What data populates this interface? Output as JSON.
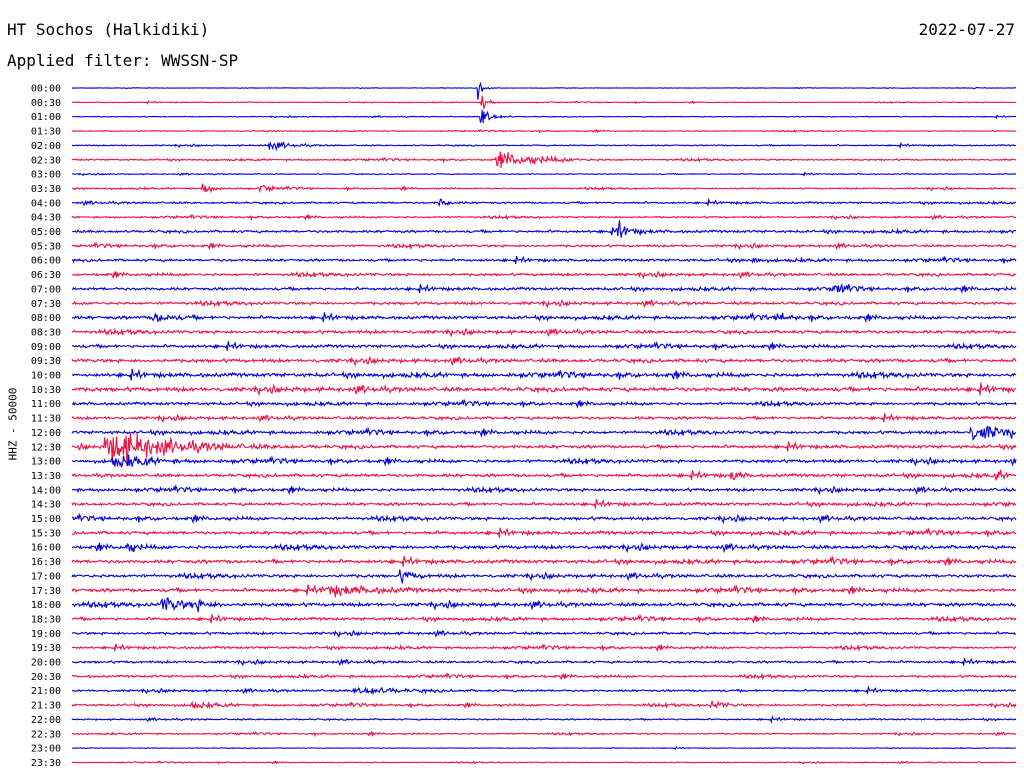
{
  "header": {
    "title": "HT Sochos (Halkidiki)",
    "date": "2022-07-27",
    "filter": "Applied filter: WWSSN-SP"
  },
  "chart_data": {
    "type": "line",
    "ylabel": "HHZ - 50000",
    "row_labels": [
      "00:00",
      "00:30",
      "01:00",
      "01:30",
      "02:00",
      "02:30",
      "03:00",
      "03:30",
      "04:00",
      "04:30",
      "05:00",
      "05:30",
      "06:00",
      "06:30",
      "07:00",
      "07:30",
      "08:00",
      "08:30",
      "09:00",
      "09:30",
      "10:00",
      "10:30",
      "11:00",
      "11:30",
      "12:00",
      "12:30",
      "13:00",
      "13:30",
      "14:00",
      "14:30",
      "15:00",
      "15:30",
      "16:00",
      "16:30",
      "17:00",
      "17:30",
      "18:00",
      "18:30",
      "19:00",
      "19:30",
      "20:00",
      "20:30",
      "21:00",
      "21:30",
      "22:00",
      "22:30",
      "23:00",
      "23:30"
    ],
    "colors": [
      "#0000dd",
      "#ee1144"
    ],
    "noise_levels": [
      0.3,
      0.5,
      0.5,
      0.6,
      0.8,
      1.0,
      0.6,
      0.9,
      1.2,
      1.1,
      1.6,
      1.5,
      1.6,
      1.7,
      1.8,
      1.8,
      2.0,
      2.0,
      1.9,
      2.2,
      2.4,
      2.6,
      1.8,
      1.8,
      2.0,
      2.0,
      2.0,
      2.0,
      1.9,
      1.9,
      2.0,
      2.0,
      2.2,
      2.2,
      2.0,
      2.2,
      2.2,
      1.8,
      1.6,
      1.5,
      1.5,
      1.4,
      1.3,
      1.3,
      1.0,
      0.9,
      0.4,
      0.6
    ],
    "events": [
      {
        "row": 0,
        "t": 0.43,
        "amp": 35,
        "dur": 0.003
      },
      {
        "row": 1,
        "t": 0.435,
        "amp": 14,
        "dur": 0.006
      },
      {
        "row": 2,
        "t": 0.435,
        "amp": 16,
        "dur": 0.01
      },
      {
        "row": 4,
        "t": 0.21,
        "amp": 6,
        "dur": 0.02
      },
      {
        "row": 5,
        "t": 0.46,
        "amp": 11,
        "dur": 0.04
      },
      {
        "row": 7,
        "t": 0.14,
        "amp": 8,
        "dur": 0.01
      },
      {
        "row": 7,
        "t": 0.2,
        "amp": 7,
        "dur": 0.01
      },
      {
        "row": 8,
        "t": 0.39,
        "amp": 8,
        "dur": 0.008
      },
      {
        "row": 10,
        "t": 0.58,
        "amp": 10,
        "dur": 0.015
      },
      {
        "row": 12,
        "t": 0.72,
        "amp": 7,
        "dur": 0.006
      },
      {
        "row": 14,
        "t": 0.81,
        "amp": 8,
        "dur": 0.01
      },
      {
        "row": 16,
        "t": 0.09,
        "amp": 6,
        "dur": 0.02
      },
      {
        "row": 16,
        "t": 0.75,
        "amp": 7,
        "dur": 0.01
      },
      {
        "row": 24,
        "t": 0.96,
        "amp": 12,
        "dur": 0.03
      },
      {
        "row": 25,
        "t": 0.05,
        "amp": 22,
        "dur": 0.06
      },
      {
        "row": 26,
        "t": 0.05,
        "amp": 10,
        "dur": 0.03
      },
      {
        "row": 27,
        "t": 0.7,
        "amp": 8,
        "dur": 0.008
      },
      {
        "row": 27,
        "t": 0.98,
        "amp": 8,
        "dur": 0.006
      },
      {
        "row": 32,
        "t": 0.06,
        "amp": 7,
        "dur": 0.01
      },
      {
        "row": 34,
        "t": 0.35,
        "amp": 7,
        "dur": 0.015
      },
      {
        "row": 35,
        "t": 0.28,
        "amp": 6,
        "dur": 0.05
      },
      {
        "row": 36,
        "t": 0.1,
        "amp": 10,
        "dur": 0.02
      },
      {
        "row": 36,
        "t": 0.13,
        "amp": 7,
        "dur": 0.015
      },
      {
        "row": 42,
        "t": 0.31,
        "amp": 5,
        "dur": 0.04
      },
      {
        "row": 43,
        "t": 0.13,
        "amp": 5,
        "dur": 0.02
      },
      {
        "row": 43,
        "t": 0.68,
        "amp": 5,
        "dur": 0.015
      }
    ]
  }
}
